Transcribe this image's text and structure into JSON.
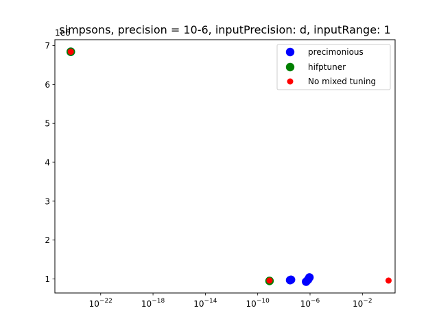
{
  "chart_data": {
    "type": "scatter",
    "title": "simpsons, precision = 10-6, inputPrecision: d, inputRange: 1",
    "xlabel": "",
    "ylabel": "",
    "x_scale": "log",
    "y_offset_label": "1e6",
    "x_ticks": [
      {
        "value": 1e-22,
        "base": "10",
        "exp": "−22"
      },
      {
        "value": 1e-18,
        "base": "10",
        "exp": "−18"
      },
      {
        "value": 1e-14,
        "base": "10",
        "exp": "−14"
      },
      {
        "value": 1e-10,
        "base": "10",
        "exp": "−10"
      },
      {
        "value": 1e-06,
        "base": "10",
        "exp": "−6"
      },
      {
        "value": 0.01,
        "base": "10",
        "exp": "−2"
      }
    ],
    "y_ticks": [
      {
        "value": 1,
        "label": "1"
      },
      {
        "value": 2,
        "label": "2"
      },
      {
        "value": 3,
        "label": "3"
      },
      {
        "value": 4,
        "label": "4"
      },
      {
        "value": 5,
        "label": "5"
      },
      {
        "value": 6,
        "label": "6"
      },
      {
        "value": 7,
        "label": "7"
      }
    ],
    "xlim": [
      3.1623e-26,
      3.1623
    ],
    "ylim": [
      0.64,
      7.15
    ],
    "legend_position": "top-right",
    "series": [
      {
        "name": "precimonious",
        "color": "#0000ff",
        "marker_size": "large",
        "points": [
          {
            "x": 5.2e-25,
            "y": 6.84
          },
          {
            "x": 3e-08,
            "y": 0.97
          },
          {
            "x": 3.5e-08,
            "y": 0.98
          },
          {
            "x": 5e-07,
            "y": 0.93
          },
          {
            "x": 7e-07,
            "y": 0.98
          },
          {
            "x": 9e-07,
            "y": 1.04
          }
        ]
      },
      {
        "name": "hifptuner",
        "color": "#008000",
        "marker_size": "large",
        "points": [
          {
            "x": 5.2e-25,
            "y": 6.84
          },
          {
            "x": 8e-10,
            "y": 0.95
          }
        ]
      },
      {
        "name": "No mixed tuning",
        "color": "#ff0000",
        "marker_size": "small",
        "points": [
          {
            "x": 5.2e-25,
            "y": 6.84
          },
          {
            "x": 8e-10,
            "y": 0.96
          },
          {
            "x": 1.0,
            "y": 0.96
          }
        ]
      }
    ]
  }
}
